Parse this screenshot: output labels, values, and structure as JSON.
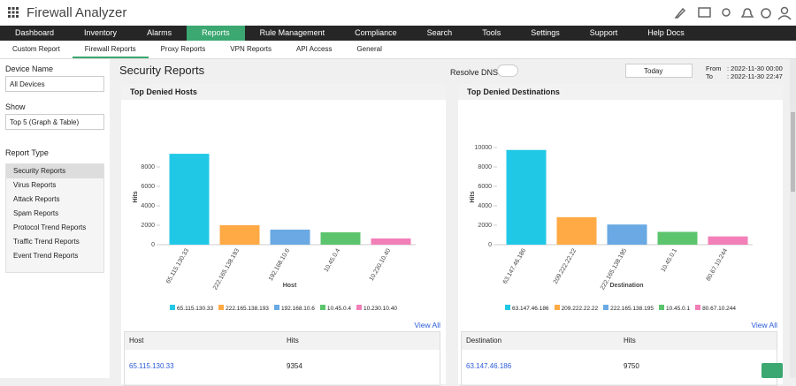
{
  "header": {
    "title": "Firewall Analyzer"
  },
  "nav": [
    "Dashboard",
    "Inventory",
    "Alarms",
    "Reports",
    "Rule Management",
    "Compliance",
    "Search",
    "Tools",
    "Settings",
    "Support",
    "Help Docs"
  ],
  "subnav": [
    "Custom Report",
    "Firewall Reports",
    "Proxy Reports",
    "VPN Reports",
    "API Access",
    "General"
  ],
  "sidebar": {
    "device_label": "Device Name",
    "device_value": "All Devices",
    "show_label": "Show",
    "show_value": "Top 5 (Graph & Table)",
    "report_type_label": "Report Type",
    "report_types": [
      "Security Reports",
      "Virus Reports",
      "Attack Reports",
      "Spam Reports",
      "Protocol Trend Reports",
      "Traffic Trend Reports",
      "Event Trend Reports"
    ]
  },
  "main": {
    "title": "Security Reports",
    "resolve_dns": "Resolve DNS",
    "period": "Today",
    "from_label": "From",
    "from_value": ": 2022-11-30 00:00",
    "to_label": "To",
    "to_value": ": 2022-11-30 22:47",
    "panels": [
      {
        "title": "Top Denied Hosts",
        "view_all": "View All",
        "table": {
          "headers": [
            "Host",
            "Hits"
          ],
          "rows": [
            [
              "65.115.130.33",
              9354
            ]
          ]
        }
      },
      {
        "title": "Top Denied Destinations",
        "view_all": "View All",
        "table": {
          "headers": [
            "Destination",
            "Hits"
          ],
          "rows": [
            [
              "63.147.46.186",
              9750
            ]
          ]
        }
      }
    ]
  },
  "chart_data": [
    {
      "type": "bar",
      "x_label": "Host",
      "y_label": "Hits",
      "categories": [
        "65.115.130.33",
        "222.165.138.193",
        "192.168.10.6",
        "10.45.0.4",
        "10.230.10.40"
      ],
      "values": [
        9354,
        2000,
        1550,
        1270,
        640
      ],
      "colors": [
        "#21c8e6",
        "#ffaa45",
        "#6aa9e3",
        "#5bc46d",
        "#f27fb7"
      ],
      "ylim": [
        0,
        10000
      ],
      "yticks": [
        0,
        2000,
        4000,
        6000,
        8000
      ]
    },
    {
      "type": "bar",
      "x_label": "Destination",
      "y_label": "Hits",
      "categories": [
        "63.147.46.186",
        "209.222.22.22",
        "222.165.138.195",
        "10.45.0.1",
        "80.67.10.244"
      ],
      "values": [
        9750,
        2830,
        2075,
        1320,
        850
      ],
      "colors": [
        "#21c8e6",
        "#ffaa45",
        "#6aa9e3",
        "#5bc46d",
        "#f27fb7"
      ],
      "ylim": [
        0,
        10000
      ],
      "yticks": [
        0,
        2000,
        4000,
        6000,
        8000,
        10000
      ]
    }
  ]
}
